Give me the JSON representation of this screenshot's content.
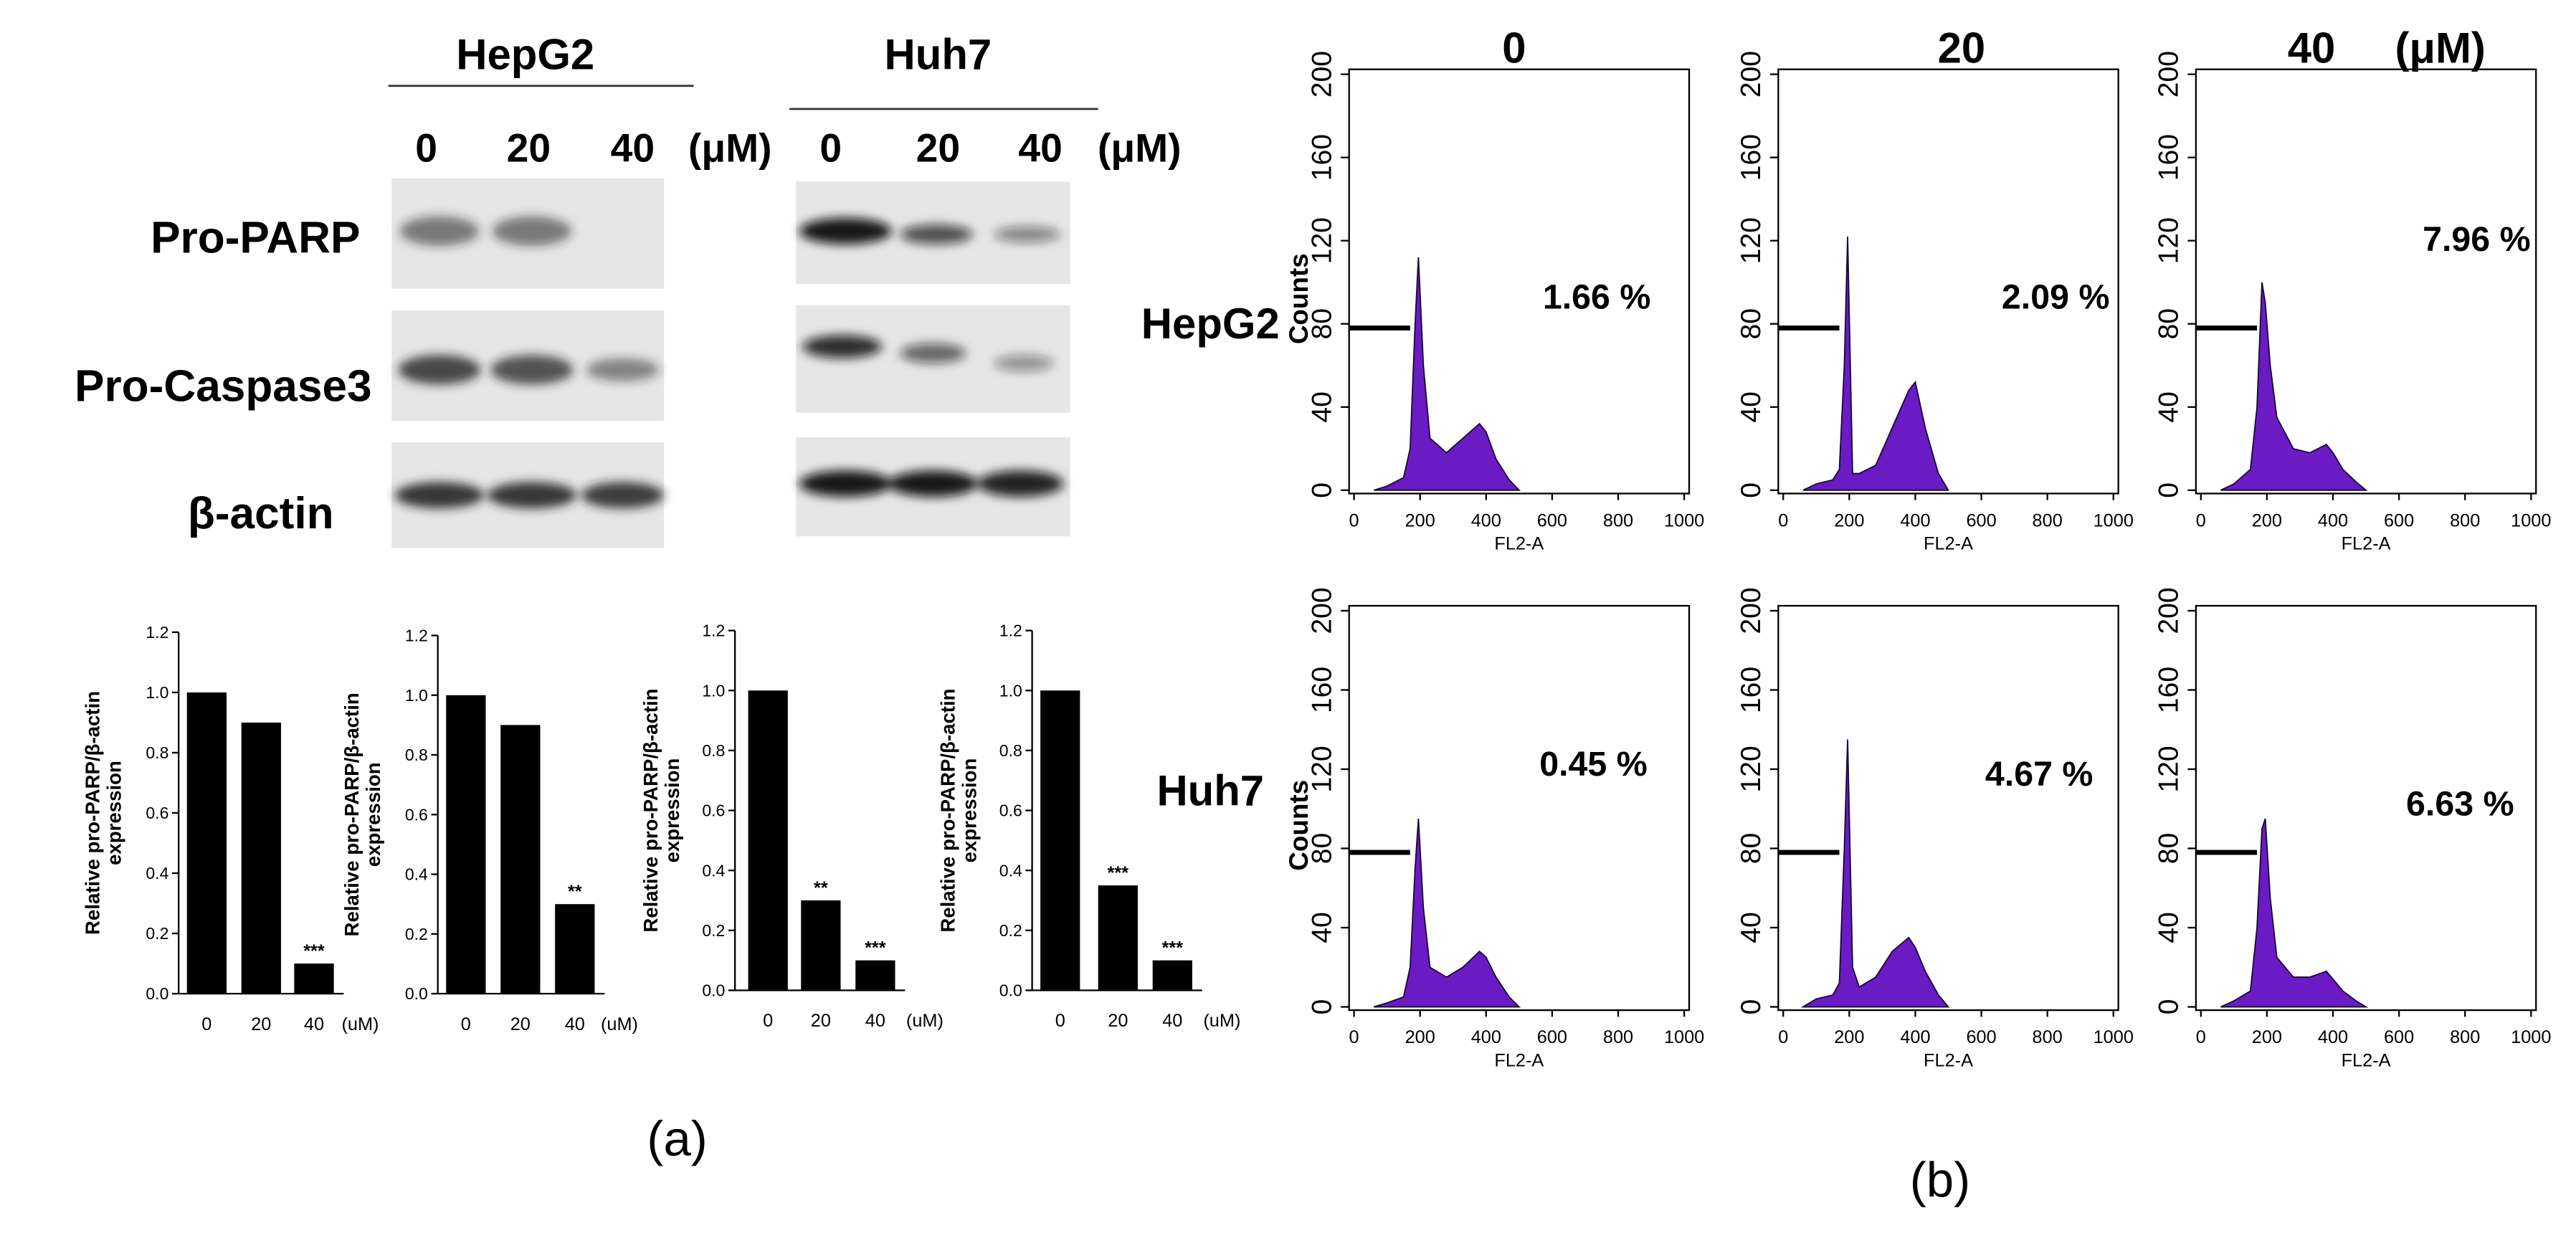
{
  "western_blot": {
    "unit": "(μM)",
    "proteins": [
      "Pro-PARP",
      "Pro-Caspase3",
      "β-actin"
    ],
    "cell_lines": [
      {
        "name": "HepG2",
        "concentrations": [
          "0",
          "20",
          "40"
        ]
      },
      {
        "name": "Huh7",
        "concentrations": [
          "0",
          "20",
          "40"
        ]
      }
    ]
  },
  "chart_data": [
    {
      "type": "bar",
      "categories": [
        "0",
        "20",
        "40"
      ],
      "values": [
        1.0,
        0.9,
        0.1
      ],
      "color": "#000000",
      "x_unit": "(uM)",
      "ylabel": [
        "Relative pro-PARP/β-actin",
        "expression"
      ],
      "ylim": [
        0,
        1.2
      ],
      "yticks": [
        {
          "value": 0,
          "label": "0.0"
        },
        0.2,
        0.4,
        0.6,
        0.8,
        {
          "value": 1,
          "label": "1.0"
        },
        1.2
      ],
      "annotations": [
        {
          "category": "40",
          "text": "***"
        }
      ]
    },
    {
      "type": "bar",
      "categories": [
        "0",
        "20",
        "40"
      ],
      "values": [
        1.0,
        0.9,
        0.3
      ],
      "color": "#000000",
      "x_unit": "(uM)",
      "ylabel": [
        "Relative pro-PARP/β-actin",
        "expression"
      ],
      "ylim": [
        0,
        1.2
      ],
      "yticks": [
        {
          "value": 0,
          "label": "0.0"
        },
        0.2,
        0.4,
        0.6,
        0.8,
        {
          "value": 1,
          "label": "1.0"
        },
        1.2
      ],
      "annotations": [
        {
          "category": "40",
          "text": "**"
        }
      ]
    },
    {
      "type": "bar",
      "categories": [
        "0",
        "20",
        "40"
      ],
      "values": [
        1.0,
        0.3,
        0.1
      ],
      "color": "#000000",
      "x_unit": "(uM)",
      "ylabel": [
        "Relative pro-PARP/β-actin",
        "expression"
      ],
      "ylim": [
        0,
        1.2
      ],
      "yticks": [
        {
          "value": 0,
          "label": "0.0"
        },
        0.2,
        0.4,
        0.6,
        0.8,
        {
          "value": 1,
          "label": "1.0"
        },
        1.2
      ],
      "annotations": [
        {
          "category": "20",
          "text": "**"
        },
        {
          "category": "40",
          "text": "***"
        }
      ]
    },
    {
      "type": "bar",
      "categories": [
        "0",
        "20",
        "40"
      ],
      "values": [
        1.0,
        0.35,
        0.1
      ],
      "color": "#000000",
      "x_unit": "(uM)",
      "ylabel": [
        "Relative pro-PARP/β-actin",
        "expression"
      ],
      "ylim": [
        0,
        1.2
      ],
      "yticks": [
        {
          "value": 0,
          "label": "0.0"
        },
        0.2,
        0.4,
        0.6,
        0.8,
        {
          "value": 1,
          "label": "1.0"
        },
        1.2
      ],
      "annotations": [
        {
          "category": "20",
          "text": "***"
        },
        {
          "category": "40",
          "text": "***"
        }
      ]
    }
  ],
  "flow_cytometry": {
    "concentrations": [
      "0",
      "20",
      "40"
    ],
    "unit": "(μM)",
    "cell_lines": [
      "HepG2",
      "Huh7"
    ],
    "panels": [
      {
        "type": "area",
        "color": "#6a1bc4",
        "annotation": "1.66 %",
        "xlabel": "FL2-A",
        "ylabel": "Counts",
        "x": [
          60,
          100,
          150,
          170,
          185,
          195,
          210,
          230,
          280,
          330,
          380,
          400,
          430,
          470,
          500
        ],
        "values": [
          0,
          2,
          6,
          20,
          80,
          112,
          60,
          25,
          18,
          25,
          32,
          28,
          15,
          5,
          0
        ],
        "xlim": [
          0,
          1000
        ],
        "xticks": [
          0,
          200,
          400,
          600,
          800,
          1000
        ],
        "ylim": [
          0,
          200
        ],
        "yticks": [
          0,
          40,
          80,
          120,
          160,
          200
        ]
      },
      {
        "type": "area",
        "color": "#6a1bc4",
        "annotation": "2.09 %",
        "xlabel": "FL2-A",
        "x": [
          60,
          100,
          150,
          170,
          185,
          195,
          210,
          230,
          280,
          330,
          380,
          400,
          430,
          470,
          500
        ],
        "values": [
          0,
          3,
          5,
          10,
          60,
          122,
          8,
          8,
          12,
          30,
          48,
          52,
          30,
          8,
          0
        ],
        "xlim": [
          0,
          1000
        ],
        "xticks": [
          0,
          200,
          400,
          600,
          800,
          1000
        ],
        "ylim": [
          0,
          200
        ],
        "yticks": [
          0,
          40,
          80,
          120,
          160,
          200
        ]
      },
      {
        "type": "area",
        "color": "#6a1bc4",
        "annotation": "7.96 %",
        "xlabel": "FL2-A",
        "x": [
          60,
          100,
          150,
          170,
          185,
          195,
          210,
          230,
          280,
          330,
          380,
          400,
          430,
          470,
          500
        ],
        "values": [
          0,
          3,
          10,
          40,
          100,
          90,
          60,
          35,
          20,
          18,
          22,
          18,
          10,
          4,
          0
        ],
        "xlim": [
          0,
          1000
        ],
        "xticks": [
          0,
          200,
          400,
          600,
          800,
          1000
        ],
        "ylim": [
          0,
          200
        ],
        "yticks": [
          0,
          40,
          80,
          120,
          160,
          200
        ]
      },
      {
        "type": "area",
        "color": "#6a1bc4",
        "annotation": "0.45 %",
        "xlabel": "FL2-A",
        "ylabel": "Counts",
        "x": [
          60,
          100,
          150,
          170,
          185,
          195,
          210,
          230,
          280,
          330,
          380,
          400,
          430,
          470,
          500
        ],
        "values": [
          0,
          2,
          5,
          20,
          70,
          95,
          50,
          20,
          15,
          20,
          28,
          25,
          15,
          5,
          0
        ],
        "xlim": [
          0,
          1000
        ],
        "xticks": [
          0,
          200,
          400,
          600,
          800,
          1000
        ],
        "ylim": [
          0,
          200
        ],
        "yticks": [
          0,
          40,
          80,
          120,
          160,
          200
        ]
      },
      {
        "type": "area",
        "color": "#6a1bc4",
        "annotation": "4.67 %",
        "xlabel": "FL2-A",
        "x": [
          60,
          100,
          150,
          170,
          185,
          195,
          210,
          230,
          280,
          330,
          380,
          400,
          430,
          470,
          500
        ],
        "values": [
          0,
          4,
          6,
          12,
          80,
          135,
          20,
          10,
          15,
          28,
          35,
          30,
          18,
          6,
          0
        ],
        "xlim": [
          0,
          1000
        ],
        "xticks": [
          0,
          200,
          400,
          600,
          800,
          1000
        ],
        "ylim": [
          0,
          200
        ],
        "yticks": [
          0,
          40,
          80,
          120,
          160,
          200
        ]
      },
      {
        "type": "area",
        "color": "#6a1bc4",
        "annotation": "6.63 %",
        "xlabel": "FL2-A",
        "x": [
          60,
          100,
          150,
          170,
          185,
          195,
          210,
          230,
          280,
          330,
          380,
          400,
          430,
          470,
          500
        ],
        "values": [
          0,
          3,
          8,
          40,
          90,
          95,
          55,
          25,
          15,
          15,
          18,
          14,
          8,
          3,
          0
        ],
        "xlim": [
          0,
          1000
        ],
        "xticks": [
          0,
          200,
          400,
          600,
          800,
          1000
        ],
        "ylim": [
          0,
          200
        ],
        "yticks": [
          0,
          40,
          80,
          120,
          160,
          200
        ]
      }
    ]
  },
  "panel_labels": [
    "(a)",
    "(b)"
  ]
}
